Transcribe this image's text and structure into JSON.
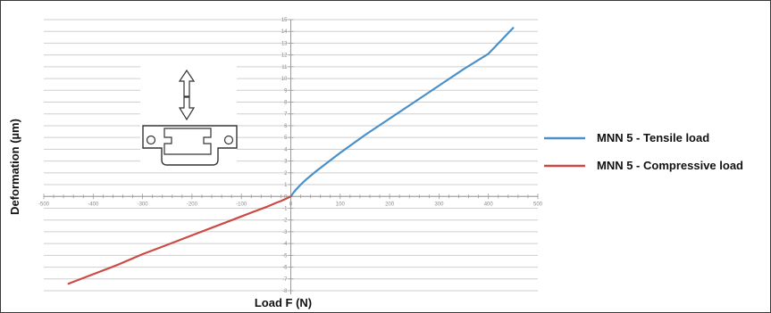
{
  "chart_data": {
    "type": "line",
    "title": "",
    "xlabel": "Load F (N)",
    "ylabel": "Deformation (µm)",
    "xlim": [
      -500,
      500
    ],
    "ylim": [
      -8,
      15
    ],
    "xticks": [
      -500,
      -400,
      -300,
      -200,
      -100,
      0,
      100,
      200,
      300,
      400,
      500
    ],
    "yticks": [
      -8,
      -7,
      -6,
      -5,
      -4,
      -3,
      -2,
      -1,
      0,
      1,
      2,
      3,
      4,
      5,
      6,
      7,
      8,
      9,
      10,
      11,
      12,
      13,
      14,
      15
    ],
    "grid": true,
    "legend_position": "right",
    "series": [
      {
        "name": "MNN 5 - Tensile load",
        "color": "#4a90c8",
        "x": [
          0,
          5,
          10,
          20,
          30,
          50,
          75,
          100,
          150,
          200,
          250,
          300,
          350,
          400,
          450
        ],
        "y": [
          0,
          0.3,
          0.55,
          1.0,
          1.4,
          2.1,
          2.9,
          3.7,
          5.2,
          6.6,
          8.0,
          9.4,
          10.8,
          12.1,
          14.3
        ]
      },
      {
        "name": "MNN 5 - Compressive load",
        "color": "#cc4a44",
        "x": [
          0,
          -5,
          -10,
          -20,
          -30,
          -50,
          -75,
          -100,
          -150,
          -200,
          -250,
          -300,
          -350,
          -400,
          -450
        ],
        "y": [
          0,
          -0.1,
          -0.2,
          -0.4,
          -0.55,
          -0.9,
          -1.3,
          -1.7,
          -2.5,
          -3.3,
          -4.1,
          -4.9,
          -5.8,
          -6.6,
          -7.4
        ]
      }
    ]
  },
  "icons": {
    "inset": "linear-guide-carriage-icon"
  }
}
